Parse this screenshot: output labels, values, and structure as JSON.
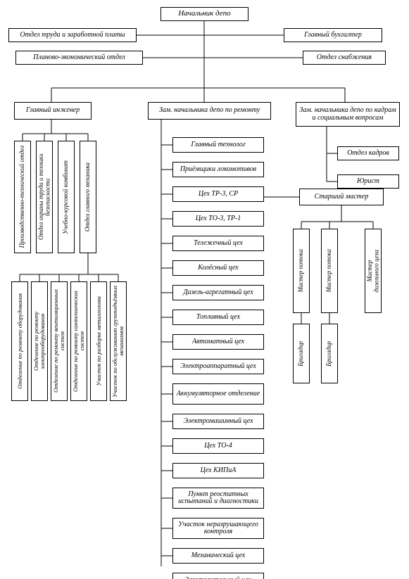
{
  "type": "org-chart",
  "background_color": "#ffffff",
  "line_color": "#000000",
  "font": {
    "title_size": 11,
    "box_size": 10,
    "small_size": 9,
    "family": "serif-italic"
  },
  "root": {
    "label": "Начальник депо"
  },
  "top_row_1": {
    "left": {
      "label": "Отдел труда и заработной платы"
    },
    "right": {
      "label": "Главный бухгалтер"
    }
  },
  "top_row_2": {
    "left": {
      "label": "Планово-экономический отдел"
    },
    "right": {
      "label": "Отдел снабжения"
    }
  },
  "branches": {
    "engineer": {
      "label": "Главный инженер",
      "subs": [
        {
          "label": "Производственно-технический отдел"
        },
        {
          "label": "Отдел охраны труда и техники безопасности"
        },
        {
          "label": "Учебно-курсовой комбинат"
        },
        {
          "label": "Отдел главного механика"
        }
      ],
      "mech_subs": [
        {
          "label": "Отделение по ремонту оборудования"
        },
        {
          "label": "Отделение по ремонту электрооборудования"
        },
        {
          "label": "Отделение по ремонту вентиляционных систем"
        },
        {
          "label": "Отделение по ремонту сантехнических систем"
        },
        {
          "label": "Участок по разборке металлолома"
        },
        {
          "label": "Участок по обслуживанию грузоподъёмных механизмов"
        }
      ]
    },
    "repair_deputy": {
      "label": "Зам. начальника депо по ремонту",
      "items": [
        {
          "label": "Главный технолог"
        },
        {
          "label": "Приёмщики локомотивов"
        },
        {
          "label": "Цех ТР-3, СР"
        },
        {
          "label": "Цех ТО-3, ТР-1"
        },
        {
          "label": "Тележечный цех"
        },
        {
          "label": "Колёсный цех"
        },
        {
          "label": "Дизель-агрегатный цех"
        },
        {
          "label": "Топливный цех"
        },
        {
          "label": "Автоматный цех"
        },
        {
          "label": "Электроаппаратный цех"
        },
        {
          "label": "Аккумуляторное отделение"
        },
        {
          "label": "Электромашинный цех"
        },
        {
          "label": "Цех ТО-4"
        },
        {
          "label": "Цех КИПиА"
        },
        {
          "label": "Пункт реостатных испытаний и диагностики"
        },
        {
          "label": "Участок неразрушающего контроля"
        },
        {
          "label": "Механический цех"
        },
        {
          "label": "Заготовительный цех"
        }
      ]
    },
    "hr_deputy": {
      "label": "Зам. начальника депо по кадрам и социальным вопросам",
      "subs": [
        {
          "label": "Отдел кадров"
        },
        {
          "label": "Юрист"
        }
      ]
    }
  },
  "senior_master": {
    "label": "Старший мастер",
    "masters": [
      {
        "label": "Мастер потока"
      },
      {
        "label": "Мастер потока"
      },
      {
        "label": "Мастер\nдизельного цеха"
      }
    ],
    "brigadiers": [
      {
        "label": "Бригадир"
      },
      {
        "label": "Бригадир"
      }
    ]
  }
}
